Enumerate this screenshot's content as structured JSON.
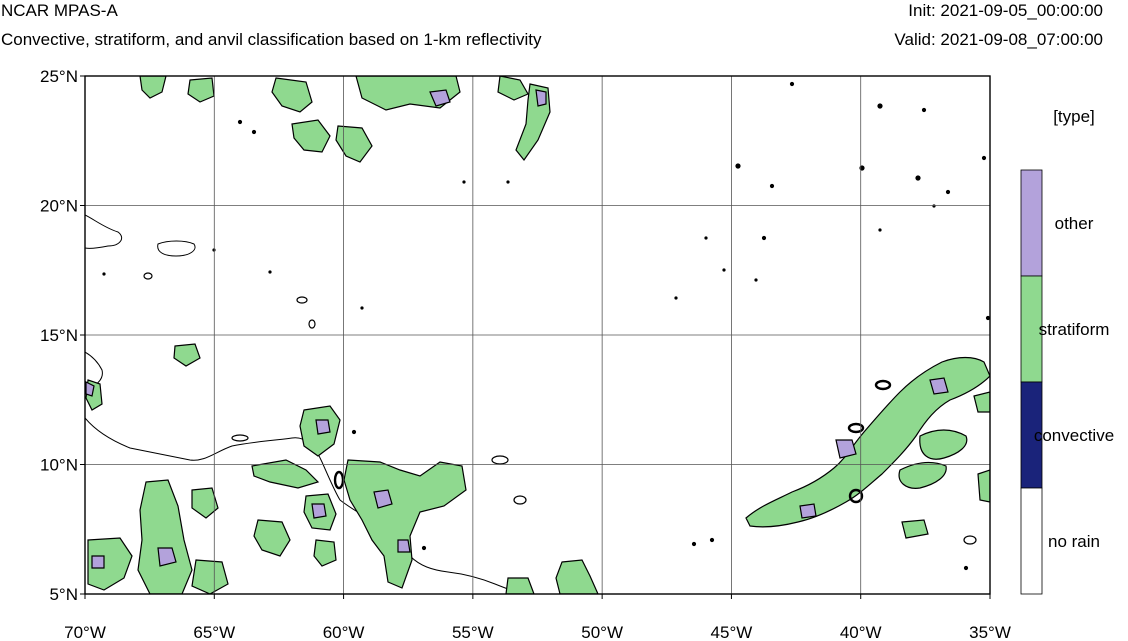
{
  "header": {
    "title": "NCAR MPAS-A",
    "subtitle": "Convective, stratiform, and anvil classification based on 1-km reflectivity",
    "init": "Init: 2021-09-05_00:00:00",
    "valid": "Valid: 2021-09-08_07:00:00"
  },
  "map": {
    "lon_range": [
      -70,
      -35
    ],
    "lat_range": [
      5,
      25
    ],
    "lon_ticks": [
      {
        "value": -70,
        "label": "70°W"
      },
      {
        "value": -65,
        "label": "65°W"
      },
      {
        "value": -60,
        "label": "60°W"
      },
      {
        "value": -55,
        "label": "55°W"
      },
      {
        "value": -50,
        "label": "50°W"
      },
      {
        "value": -45,
        "label": "45°W"
      },
      {
        "value": -40,
        "label": "40°W"
      },
      {
        "value": -35,
        "label": "35°W"
      }
    ],
    "lat_ticks": [
      {
        "value": 25,
        "label": "25°N"
      },
      {
        "value": 20,
        "label": "20°N"
      },
      {
        "value": 15,
        "label": "15°N"
      },
      {
        "value": 10,
        "label": "10°N"
      },
      {
        "value": 5,
        "label": "5°N"
      }
    ],
    "grid": true
  },
  "legend": {
    "title": "[type]",
    "items": [
      {
        "label": "other",
        "color": "#b3a2db"
      },
      {
        "label": "stratiform",
        "color": "#8fd98f"
      },
      {
        "label": "convective",
        "color": "#1a237a"
      },
      {
        "label": "no rain",
        "color": "#ffffff"
      }
    ]
  },
  "colors": {
    "stratiform": "#8fd98f",
    "other": "#b3a2db",
    "outline": "#000000"
  }
}
